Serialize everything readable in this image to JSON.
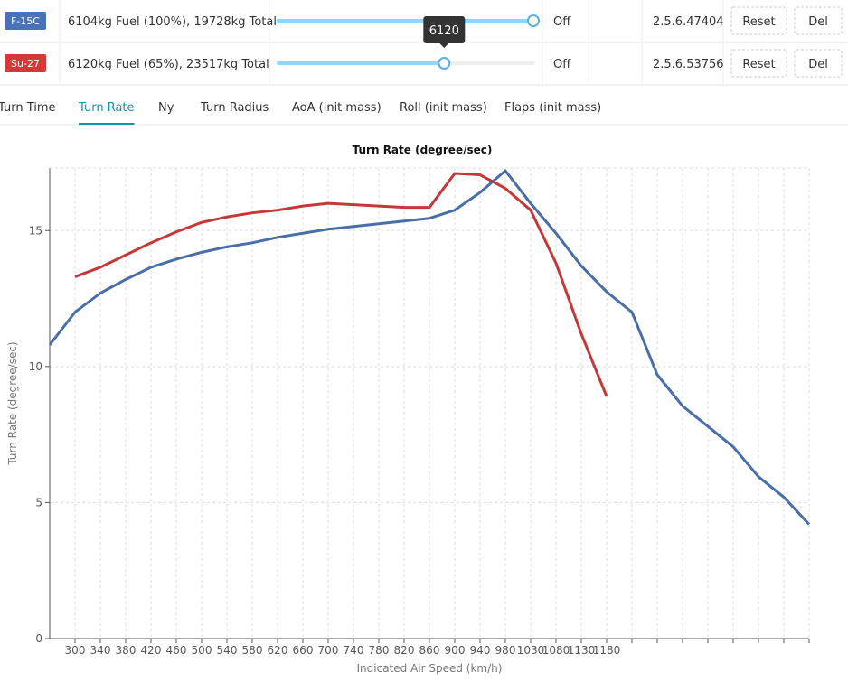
{
  "rows": [
    {
      "badge": "F-15C",
      "badge_color": "#4a72b8",
      "description": "6104kg Fuel (100%), 19728kg Total",
      "slider_percent": 100,
      "mode": "Off",
      "version": "2.5.6.47404",
      "reset": "Reset",
      "delete": "Del"
    },
    {
      "badge": "Su-27",
      "badge_color": "#d23a3a",
      "description": "6120kg Fuel (65%), 23517kg Total",
      "slider_percent": 65,
      "tooltip": "6120",
      "mode": "Off",
      "version": "2.5.6.53756",
      "reset": "Reset",
      "delete": "Del"
    }
  ],
  "tabs": {
    "items": [
      "Turn Time",
      "Turn Rate",
      "Ny",
      "Turn Radius",
      "AoA (init mass)",
      "Roll (init mass)",
      "Flaps (init mass)"
    ],
    "active": 1
  },
  "chart_data": {
    "type": "line",
    "title": "Turn Rate (degree/sec)",
    "x_label": "Indicated Air Speed (km/h)",
    "y_label": "Turn Rate (degree/sec)",
    "categories": [
      null,
      "300",
      "340",
      "380",
      "420",
      "460",
      "500",
      "540",
      "580",
      "620",
      "660",
      "700",
      "740",
      "780",
      "820",
      "860",
      "900",
      "940",
      "980",
      "1030",
      "1080",
      "1130",
      "1180",
      null,
      null,
      null,
      null,
      null,
      null,
      null,
      null
    ],
    "series": [
      {
        "name": "F-15C",
        "color": "#4a6fa8",
        "values": [
          10.8,
          12.0,
          12.7,
          13.2,
          13.65,
          13.95,
          14.2,
          14.4,
          14.55,
          14.75,
          14.9,
          15.05,
          15.15,
          15.25,
          15.35,
          15.45,
          15.75,
          16.4,
          17.2,
          16.0,
          14.9,
          13.7,
          12.75,
          12.0,
          9.7,
          8.55,
          7.8,
          7.05,
          5.95,
          5.2,
          4.2
        ]
      },
      {
        "name": "Su-27",
        "color": "#c83737",
        "values": [
          null,
          13.3,
          13.65,
          14.1,
          14.55,
          14.95,
          15.3,
          15.5,
          15.65,
          15.75,
          15.9,
          16.0,
          15.95,
          15.9,
          15.85,
          15.85,
          17.1,
          17.05,
          16.55,
          15.75,
          13.8,
          11.2,
          8.9,
          null,
          null,
          null,
          null,
          null,
          null,
          null,
          null
        ]
      }
    ],
    "ylim": [
      0,
      17.3
    ],
    "yticks": [
      0,
      5,
      10,
      15
    ],
    "grid": true
  }
}
